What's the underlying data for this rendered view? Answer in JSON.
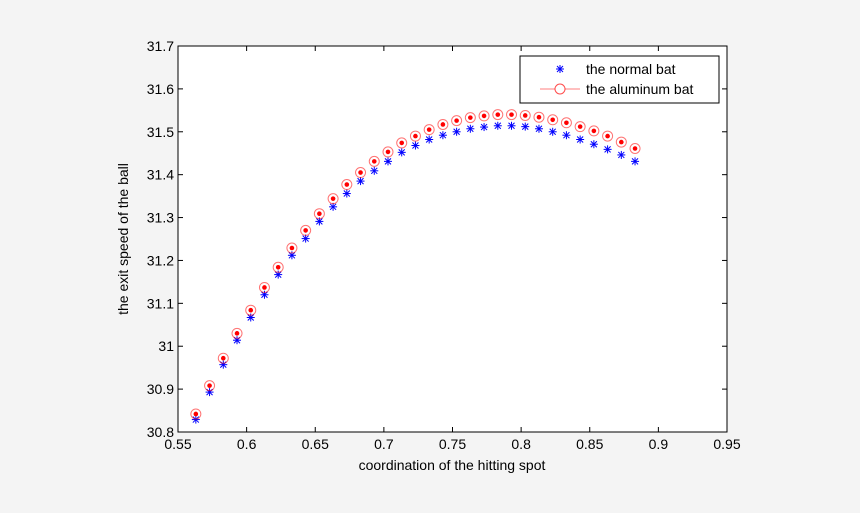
{
  "chart_data": {
    "type": "scatter",
    "title": "",
    "xlabel": "coordination of the hitting spot",
    "ylabel": "the exit speed of the ball",
    "xlim": [
      0.55,
      0.95
    ],
    "ylim": [
      30.8,
      31.7
    ],
    "xticks": [
      0.55,
      0.6,
      0.65,
      0.7,
      0.75,
      0.8,
      0.85,
      0.9,
      0.95
    ],
    "xtick_labels": [
      "0.55",
      "0.6",
      "0.65",
      "0.7",
      "0.75",
      "0.8",
      "0.85",
      "0.9",
      "0.95"
    ],
    "yticks": [
      30.8,
      30.9,
      31.0,
      31.1,
      31.2,
      31.3,
      31.4,
      31.5,
      31.6,
      31.7
    ],
    "ytick_labels": [
      "30.8",
      "30.9",
      "31",
      "31.1",
      "31.2",
      "31.3",
      "31.4",
      "31.5",
      "31.6",
      "31.7"
    ],
    "grid": false,
    "legend_position": "top-right",
    "x": [
      0.563,
      0.573,
      0.583,
      0.593,
      0.603,
      0.613,
      0.623,
      0.633,
      0.643,
      0.653,
      0.663,
      0.673,
      0.683,
      0.693,
      0.703,
      0.713,
      0.723,
      0.733,
      0.743,
      0.753,
      0.763,
      0.773,
      0.783,
      0.793,
      0.803,
      0.813,
      0.823,
      0.833,
      0.843,
      0.853,
      0.863,
      0.873,
      0.883
    ],
    "series": [
      {
        "name": "the normal bat",
        "marker": "star",
        "color": "#0000ff",
        "values": [
          30.829,
          30.893,
          30.957,
          31.014,
          31.067,
          31.12,
          31.167,
          31.212,
          31.251,
          31.291,
          31.325,
          31.356,
          31.385,
          31.409,
          31.431,
          31.452,
          31.468,
          31.482,
          31.492,
          31.5,
          31.507,
          31.511,
          31.514,
          31.514,
          31.512,
          31.507,
          31.5,
          31.492,
          31.482,
          31.471,
          31.459,
          31.446,
          31.431
        ]
      },
      {
        "name": "the aluminum bat",
        "marker": "circle-dot",
        "color": "#ff0000",
        "values": [
          30.842,
          30.908,
          30.972,
          31.03,
          31.084,
          31.137,
          31.184,
          31.229,
          31.27,
          31.309,
          31.344,
          31.377,
          31.405,
          31.431,
          31.453,
          31.474,
          31.49,
          31.505,
          31.517,
          31.526,
          31.533,
          31.537,
          31.54,
          31.54,
          31.538,
          31.534,
          31.528,
          31.521,
          31.512,
          31.502,
          31.49,
          31.476,
          31.461
        ]
      }
    ]
  }
}
